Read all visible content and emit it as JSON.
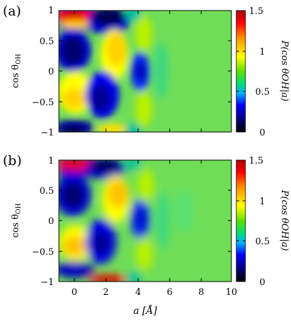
{
  "chart_data": [
    {
      "type": "heatmap",
      "panel_label": "(a)",
      "ylabel": "cos θ",
      "ylabel_sub": "OH",
      "xlabel": "",
      "xlim": [
        -0.8,
        10
      ],
      "ylim": [
        -1,
        1
      ],
      "y_ticks": [
        "1",
        "0.5",
        "0",
        "−0.5",
        "−1"
      ],
      "y_tick_values": [
        1,
        0.5,
        0,
        -0.5,
        -1
      ],
      "colorbar": {
        "label": "P(cos θOH|a)",
        "range": [
          0,
          1.5
        ],
        "ticks": [
          "1.5",
          "1",
          "0.5",
          "0"
        ],
        "tick_values": [
          1.5,
          1,
          0.5,
          0
        ],
        "colormap": [
          "#000000",
          "#00008b",
          "#0000ff",
          "#00b4ff",
          "#00e070",
          "#60e000",
          "#ffff00",
          "#ff8c00",
          "#ff0000",
          "#b00000"
        ]
      },
      "features": [
        {
          "a": 0.5,
          "cos": 0.95,
          "value": 1.45
        },
        {
          "a": 0.0,
          "cos": 0.55,
          "value": 0.1
        },
        {
          "a": 0.3,
          "cos": -0.45,
          "value": 1.15
        },
        {
          "a": 0.5,
          "cos": -0.95,
          "value": 0.05
        },
        {
          "a": 2.2,
          "cos": 0.95,
          "value": 0.1
        },
        {
          "a": 2.7,
          "cos": 0.55,
          "value": 1.15
        },
        {
          "a": 2.5,
          "cos": -0.5,
          "value": 0.15
        },
        {
          "a": 2.4,
          "cos": -0.95,
          "value": 1.1
        },
        {
          "a": 4.5,
          "cos": 0.0,
          "value": 0.2
        },
        {
          "a": 5.0,
          "cos": 0.7,
          "value": 0.75
        },
        {
          "a": 5.0,
          "cos": -0.7,
          "value": 0.75
        }
      ]
    },
    {
      "type": "heatmap",
      "panel_label": "(b)",
      "ylabel": "cos θ",
      "ylabel_sub": "OH",
      "xlabel": "a [Å]",
      "xlim": [
        -0.8,
        10
      ],
      "ylim": [
        -1,
        1
      ],
      "x_ticks": [
        "0",
        "2",
        "4",
        "6",
        "8",
        "10"
      ],
      "x_tick_values": [
        0,
        2,
        4,
        6,
        8,
        10
      ],
      "y_ticks": [
        "1",
        "0.5",
        "0",
        "−0.5",
        "−1"
      ],
      "y_tick_values": [
        1,
        0.5,
        0,
        -0.5,
        -1
      ],
      "colorbar": {
        "label": "P(cos θOH|a)",
        "range": [
          0,
          1.5
        ],
        "ticks": [
          "1.5",
          "1",
          "0.5",
          "0"
        ],
        "tick_values": [
          1.5,
          1,
          0.5,
          0
        ],
        "colormap": [
          "#000000",
          "#00008b",
          "#0000ff",
          "#00b4ff",
          "#00e070",
          "#60e000",
          "#ffff00",
          "#ff8c00",
          "#ff0000",
          "#b00000"
        ]
      },
      "features": [
        {
          "a": 0.5,
          "cos": 0.97,
          "value": 1.4
        },
        {
          "a": 0.0,
          "cos": 0.5,
          "value": 0.1
        },
        {
          "a": 0.3,
          "cos": -0.45,
          "value": 1.1
        },
        {
          "a": 0.5,
          "cos": -0.97,
          "value": 1.4
        },
        {
          "a": 2.2,
          "cos": 0.95,
          "value": 0.1
        },
        {
          "a": 2.7,
          "cos": 0.45,
          "value": 1.1
        },
        {
          "a": 2.5,
          "cos": -0.5,
          "value": 0.1
        },
        {
          "a": 2.4,
          "cos": -0.97,
          "value": 1.4
        },
        {
          "a": 4.5,
          "cos": 0.0,
          "value": 0.15
        },
        {
          "a": 5.0,
          "cos": 0.7,
          "value": 0.8
        },
        {
          "a": 5.0,
          "cos": -0.7,
          "value": 0.8
        }
      ]
    }
  ]
}
